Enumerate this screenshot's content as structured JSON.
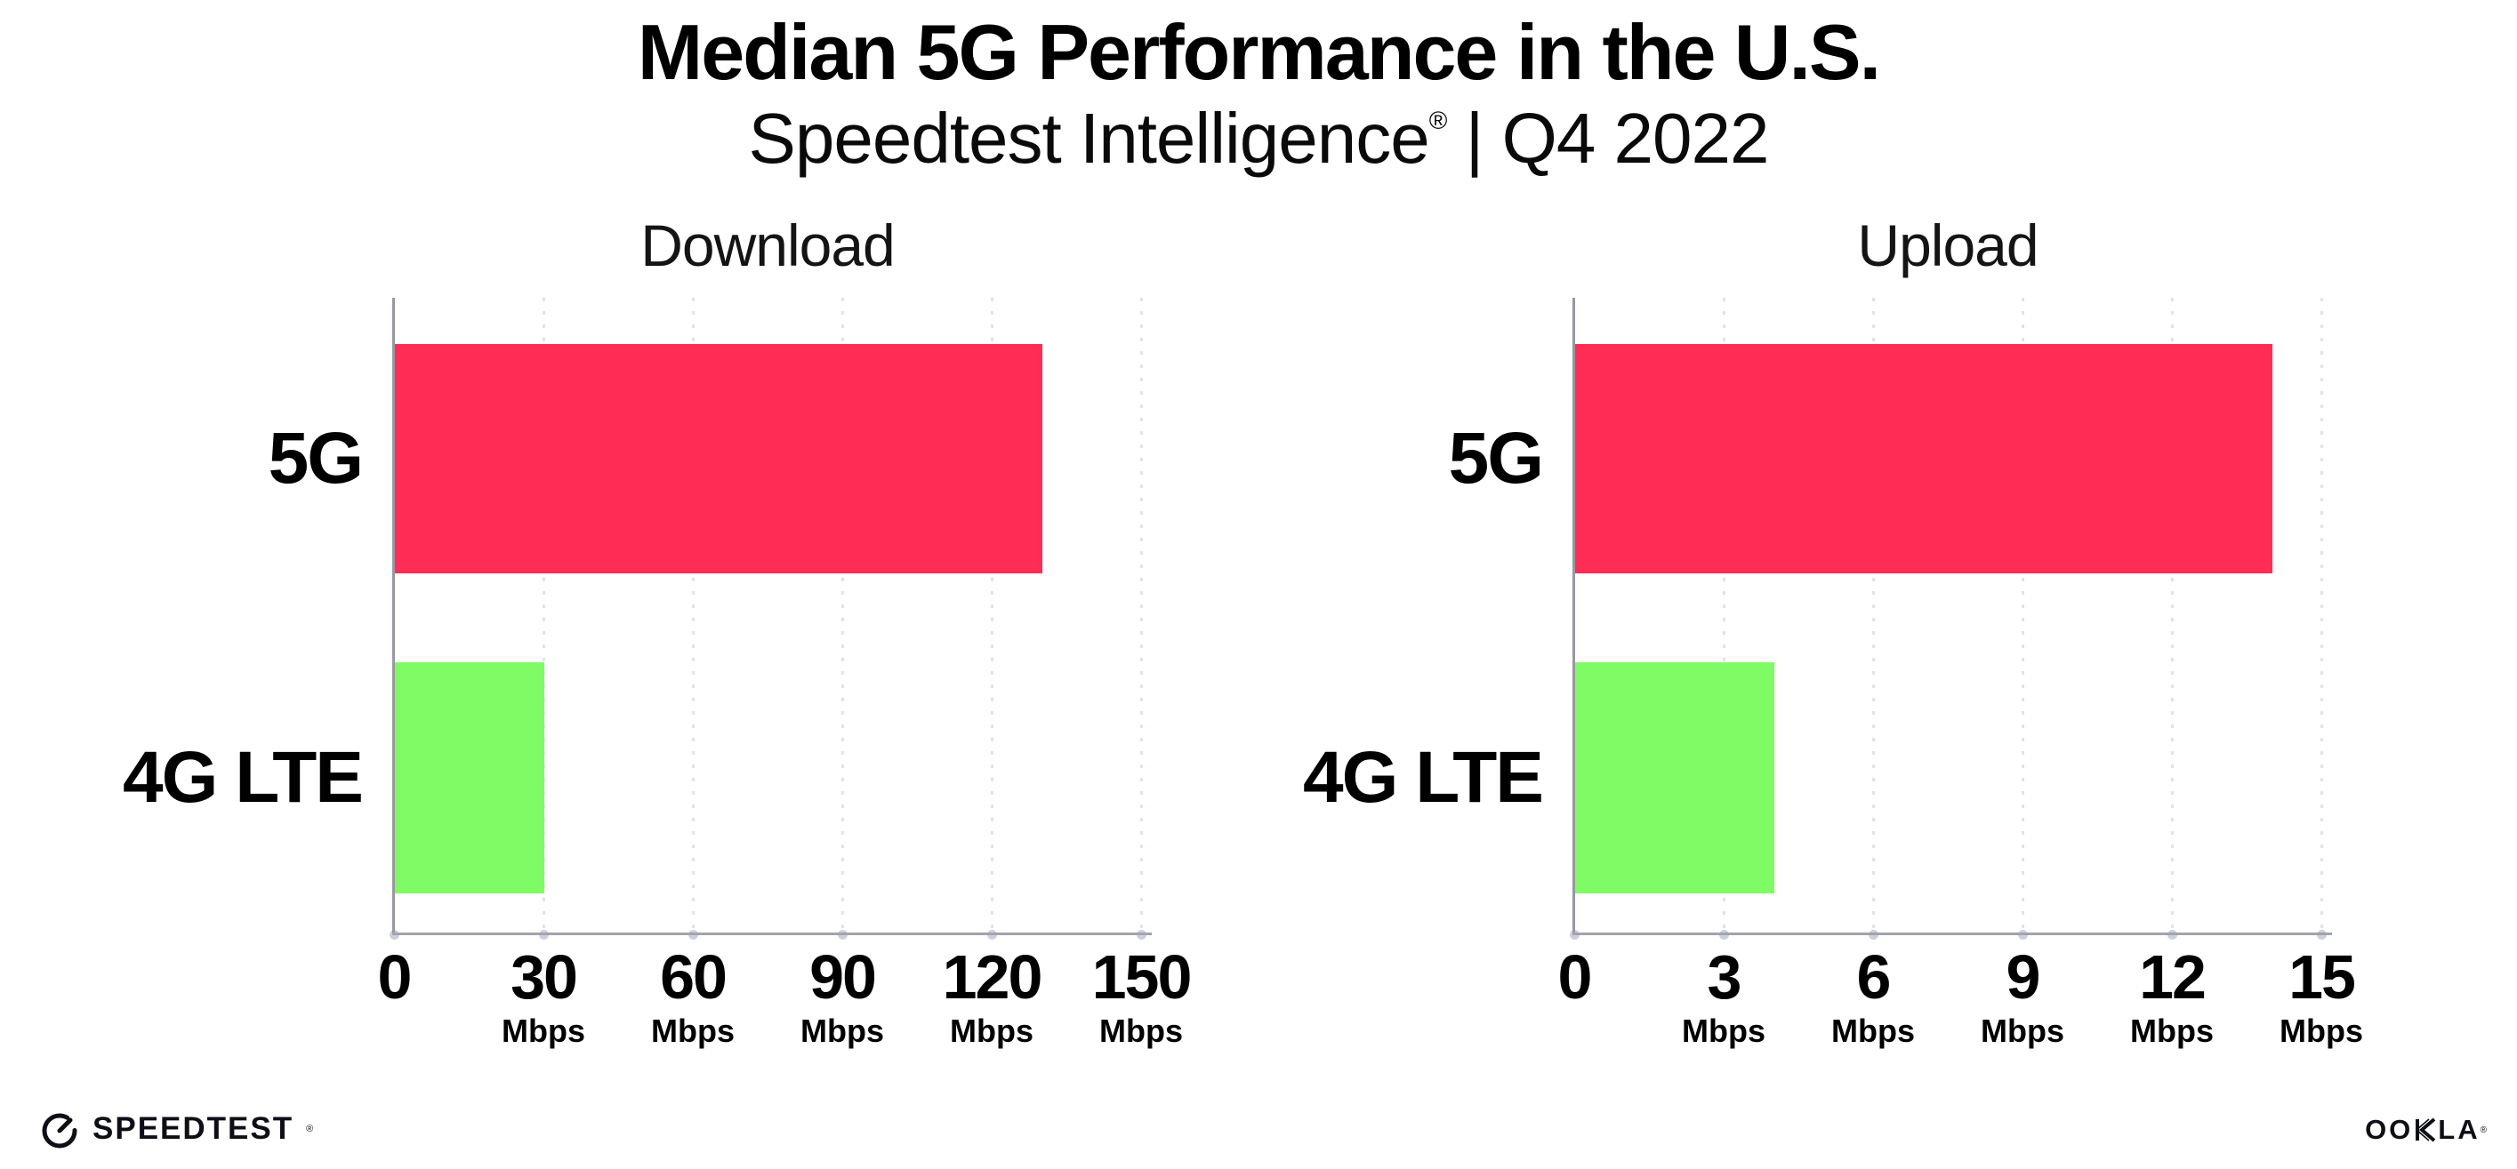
{
  "header": {
    "title": "Median 5G Performance in the U.S.",
    "subtitle": {
      "brand": "Speedtest Intelligence",
      "registered": "®",
      "rest": " | Q4 2022"
    }
  },
  "colors": {
    "bar_5g": "#ff2d55",
    "bar_4g_lte": "#7ffb66",
    "axis_line": "#a3a3ab",
    "gridline": "#e2e2ed",
    "text": "#000000"
  },
  "chart_data": [
    {
      "type": "bar",
      "orientation": "horizontal",
      "title": "Download",
      "categories": [
        "5G",
        "4G LTE"
      ],
      "values": [
        130,
        30
      ],
      "bar_colors": [
        "#ff2d55",
        "#7ffb66"
      ],
      "unit_label": "Mbps",
      "xlim": [
        0,
        150
      ],
      "xticks": [
        0,
        30,
        60,
        90,
        120,
        150
      ],
      "grid": "dotted-vertical",
      "legend": "none"
    },
    {
      "type": "bar",
      "orientation": "horizontal",
      "title": "Upload",
      "categories": [
        "5G",
        "4G LTE"
      ],
      "values": [
        14,
        4
      ],
      "bar_colors": [
        "#ff2d55",
        "#7ffb66"
      ],
      "unit_label": "Mbps",
      "xlim": [
        0,
        15
      ],
      "xticks": [
        0,
        3,
        6,
        9,
        12,
        15
      ],
      "grid": "dotted-vertical",
      "legend": "none"
    }
  ],
  "footer": {
    "speedtest": {
      "label": "SPEEDTEST",
      "registered": "®"
    },
    "ookla": {
      "label_pre": "OO",
      "label_post": "LA",
      "registered": "®"
    }
  }
}
